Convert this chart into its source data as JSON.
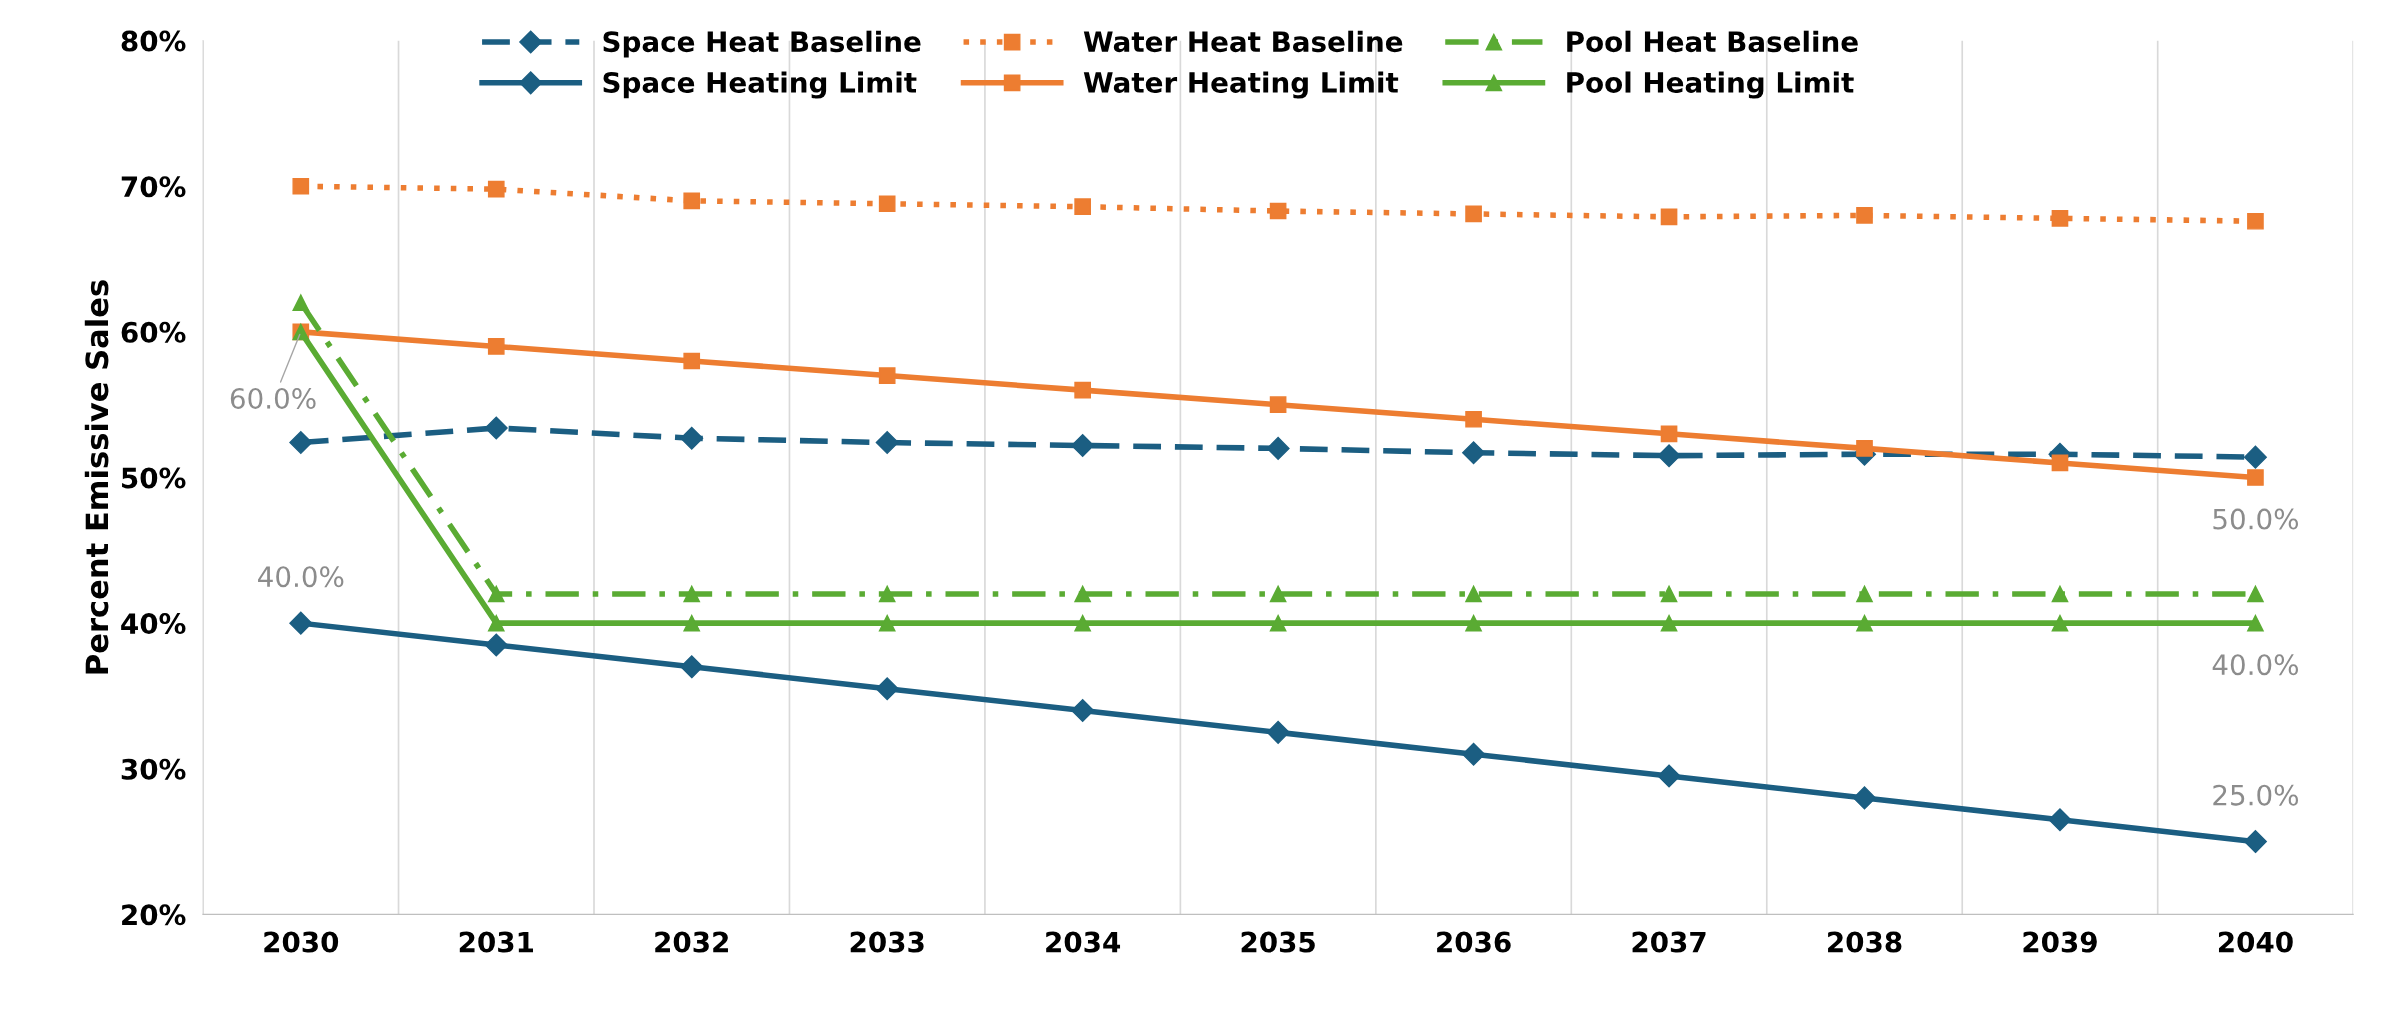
{
  "chart_data": {
    "type": "line",
    "ylabel": "Percent Emissive Sales",
    "categories": [
      "2030",
      "2031",
      "2032",
      "2033",
      "2034",
      "2035",
      "2036",
      "2037",
      "2038",
      "2039",
      "2040"
    ],
    "ylim": [
      20,
      80
    ],
    "yticks": [
      {
        "value": 20,
        "label": "20%"
      },
      {
        "value": 30,
        "label": "30%"
      },
      {
        "value": 40,
        "label": "40%"
      },
      {
        "value": 50,
        "label": "50%"
      },
      {
        "value": 60,
        "label": "60%"
      },
      {
        "value": 70,
        "label": "70%"
      },
      {
        "value": 80,
        "label": "80%"
      }
    ],
    "grid": "x",
    "legend": "top",
    "series": [
      {
        "name": "Space Heat Baseline",
        "color": "#1b5e82",
        "marker": "diamond",
        "line_style": "dashed",
        "values": [
          52.4,
          53.4,
          52.7,
          52.4,
          52.2,
          52.0,
          51.7,
          51.5,
          51.6,
          51.6,
          51.4
        ]
      },
      {
        "name": "Space Heating Limit",
        "color": "#1b5e82",
        "marker": "diamond",
        "line_style": "solid",
        "values": [
          40,
          38.5,
          37,
          35.5,
          34,
          32.5,
          31,
          29.5,
          28,
          26.5,
          25
        ],
        "value_labels": [
          "40.0%",
          null,
          null,
          null,
          null,
          null,
          null,
          null,
          null,
          null,
          "25.0%"
        ]
      },
      {
        "name": "Water Heat Baseline",
        "color": "#ed7d31",
        "marker": "square",
        "line_style": "dotted",
        "values": [
          70,
          69.8,
          69,
          68.8,
          68.6,
          68.3,
          68.1,
          67.9,
          68.0,
          67.8,
          67.6
        ]
      },
      {
        "name": "Water Heating Limit",
        "color": "#ed7d31",
        "marker": "square",
        "line_style": "solid",
        "values": [
          60,
          59,
          58,
          57,
          56,
          55,
          54,
          53,
          52,
          51,
          50
        ],
        "value_labels": [
          "60.0%",
          null,
          null,
          null,
          null,
          null,
          null,
          null,
          null,
          null,
          "50.0%"
        ]
      },
      {
        "name": "Pool Heat Baseline",
        "color": "#5aab33",
        "marker": "triangle",
        "line_style": "dashdot",
        "values": [
          62,
          42,
          42,
          42,
          42,
          42,
          42,
          42,
          42,
          42,
          42
        ]
      },
      {
        "name": "Pool Heating Limit",
        "color": "#5aab33",
        "marker": "triangle",
        "line_style": "solid",
        "values": [
          60,
          40,
          40,
          40,
          40,
          40,
          40,
          40,
          40,
          40,
          40
        ],
        "value_labels": [
          null,
          null,
          null,
          null,
          null,
          null,
          null,
          null,
          null,
          null,
          "40.0%"
        ]
      }
    ]
  }
}
